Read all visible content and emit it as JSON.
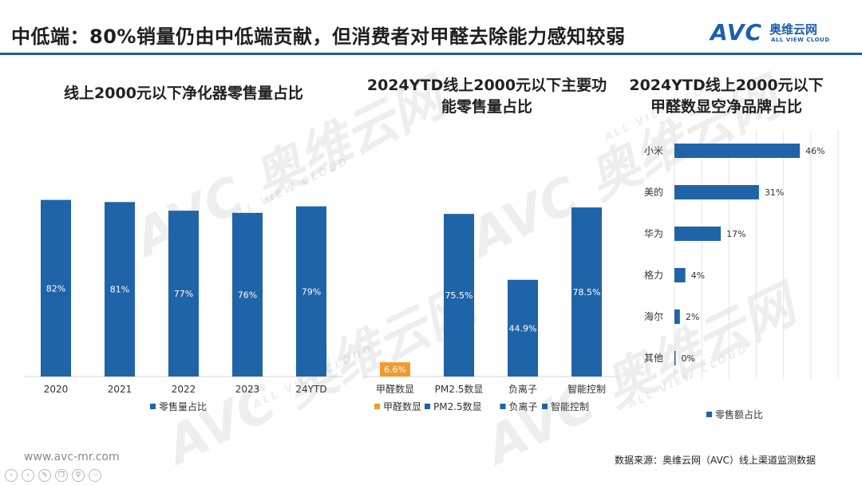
{
  "header": {
    "title": "中低端：80%销量仍由中低端贡献，但消费者对甲醛去除能力感知较弱",
    "logo_cn": "奥维云网",
    "logo_en": "ALL VIEW CLOUD",
    "logo_avc": "AVC"
  },
  "watermark": {
    "cn": "奥维云网",
    "en": "ALL VIEW CLOUD",
    "mark": "AVC"
  },
  "chart_data": [
    {
      "type": "bar",
      "title": "线上2000元以下净化器零售量占比",
      "categories": [
        "2020",
        "2021",
        "2022",
        "2023",
        "24YTD"
      ],
      "series": [
        {
          "name": "零售量占比",
          "values": [
            82,
            81,
            77,
            76,
            79
          ]
        }
      ],
      "data_labels": [
        "82%",
        "81%",
        "77%",
        "76%",
        "79%"
      ],
      "ylim": [
        0,
        100
      ],
      "legend": "bottom",
      "grid": false,
      "color": "#1f63a8"
    },
    {
      "type": "bar",
      "title": "2024YTD线上2000元以下主要功能零售量占比",
      "title_lines": [
        "2024YTD线上2000元以下主要功",
        "能零售量占比"
      ],
      "categories": [
        "甲醛数显",
        "PM2.5数显",
        "负离子",
        "智能控制"
      ],
      "series": [
        {
          "name": "",
          "values": [
            6.6,
            75.5,
            44.9,
            78.5
          ]
        }
      ],
      "data_labels": [
        "6.6%",
        "75.5%",
        "44.9%",
        "78.5%"
      ],
      "colors": [
        "#f29a2e",
        "#1f63a8",
        "#1f63a8",
        "#1f63a8"
      ],
      "legend_entries": [
        {
          "name": "甲醛数显",
          "color": "#f29a2e"
        },
        {
          "name": "PM2.5数显",
          "color": "#1f63a8"
        },
        {
          "name": "负离子",
          "color": "#1f63a8"
        },
        {
          "name": "智能控制",
          "color": "#1f63a8"
        }
      ],
      "ylim": [
        0,
        100
      ],
      "legend": "bottom",
      "grid": false
    },
    {
      "type": "bar",
      "orientation": "horizontal",
      "title": "2024YTD线上2000元以下甲醛数显空净品牌占比",
      "title_lines": [
        "2024YTD线上2000元以下",
        "甲醛数显空净品牌占比"
      ],
      "categories": [
        "小米",
        "美的",
        "华为",
        "格力",
        "海尔",
        "其他"
      ],
      "series": [
        {
          "name": "零售额占比",
          "values": [
            46,
            31,
            17,
            4,
            2,
            0
          ]
        }
      ],
      "data_labels": [
        "46%",
        "31%",
        "17%",
        "4%",
        "2%",
        "0%"
      ],
      "xlim": [
        0,
        60
      ],
      "grid": true,
      "legend": "bottom",
      "color": "#1f63a8"
    }
  ],
  "footer": {
    "url": "www.avc-mr.com",
    "source": "数据来源：奥维云网（AVC）线上渠道监测数据"
  },
  "nav_icons": [
    "prev-icon",
    "next-icon",
    "pen-icon",
    "copy-icon",
    "zoom-icon",
    "more-icon"
  ]
}
